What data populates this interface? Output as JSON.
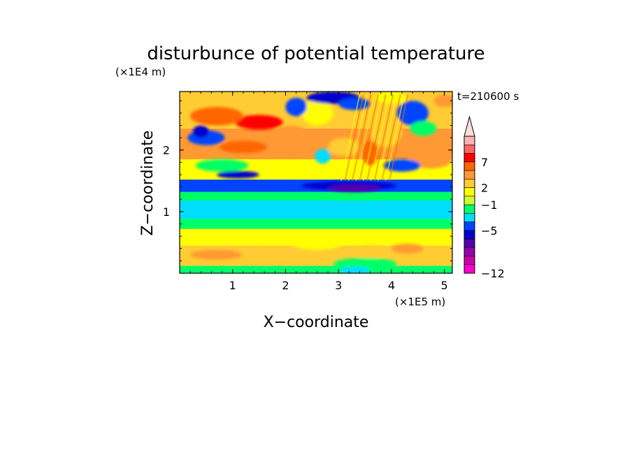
{
  "chart_data": {
    "type": "heatmap",
    "title": "disturbunce of potential temperature",
    "time_label": "t=210600 s",
    "xlabel": "X−coordinate",
    "ylabel": "Z−coordinate",
    "x_unit": "(×1E5 m)",
    "y_unit": "(×1E4 m)",
    "xlim": [
      0,
      5.15
    ],
    "ylim": [
      0,
      2.95
    ],
    "xticks": [
      1,
      2,
      3,
      4,
      5
    ],
    "xtick_labels": [
      "1",
      "2",
      "3",
      "4",
      "5"
    ],
    "yticks": [
      1,
      2
    ],
    "ytick_labels": [
      "1",
      "2"
    ],
    "colorbar": {
      "labels": [
        {
          "value": 7,
          "text": "7"
        },
        {
          "value": 2,
          "text": "2"
        },
        {
          "value": -1,
          "text": "−1"
        },
        {
          "value": -5,
          "text": "−5"
        },
        {
          "value": -12,
          "text": "−12"
        }
      ],
      "colors_bottom_to_top": [
        "#ff00cc",
        "#cc00aa",
        "#9900aa",
        "#5500aa",
        "#0000cc",
        "#0044ff",
        "#00ddff",
        "#00ff66",
        "#ccff33",
        "#ffff00",
        "#ffcc33",
        "#ff9933",
        "#ff6600",
        "#ff0000",
        "#ff6666",
        "#ffb3b3"
      ],
      "top_arrow_color": "#ffdddd"
    },
    "bands": [
      {
        "z_range": [
          0.0,
          0.12
        ],
        "level": "green",
        "color": "#00ff66"
      },
      {
        "z_range": [
          0.12,
          0.45
        ],
        "level": "orange",
        "color": "#ffcc33"
      },
      {
        "z_range": [
          0.45,
          0.72
        ],
        "level": "yellow",
        "color": "#ffff00"
      },
      {
        "z_range": [
          0.72,
          0.88
        ],
        "level": "green",
        "color": "#00ff66"
      },
      {
        "z_range": [
          0.88,
          1.18
        ],
        "level": "cyan",
        "color": "#00ddff"
      },
      {
        "z_range": [
          1.18,
          1.32
        ],
        "level": "green",
        "color": "#00ff66"
      },
      {
        "z_range": [
          1.32,
          1.52
        ],
        "level": "blue",
        "color": "#0044ff"
      },
      {
        "z_range": [
          1.52,
          1.85
        ],
        "level": "yellow",
        "color": "#ffff00"
      },
      {
        "z_range": [
          1.85,
          2.35
        ],
        "level": "orange",
        "color": "#ff9933"
      },
      {
        "z_range": [
          2.35,
          2.95
        ],
        "level": "yellow",
        "color": "#ffcc33"
      }
    ]
  }
}
